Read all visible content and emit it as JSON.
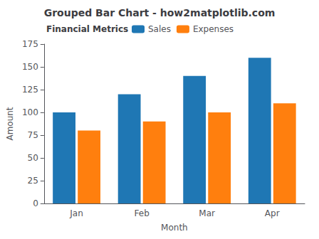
{
  "chart_data": {
    "type": "bar",
    "title": "Grouped Bar Chart - how2matplotlib.com",
    "xlabel": "Month",
    "ylabel": "Amount",
    "categories": [
      "Jan",
      "Feb",
      "Mar",
      "Apr"
    ],
    "series": [
      {
        "name": "Sales",
        "color": "#1f77b4",
        "values": [
          100,
          120,
          140,
          160
        ]
      },
      {
        "name": "Expenses",
        "color": "#ff7f0e",
        "values": [
          80,
          90,
          100,
          110
        ]
      }
    ],
    "ylim": [
      0,
      175
    ],
    "yticks": [
      0,
      25,
      50,
      75,
      100,
      125,
      150,
      175
    ],
    "grid": false,
    "legend": "upper left",
    "legend_title": "Financial Metrics"
  }
}
